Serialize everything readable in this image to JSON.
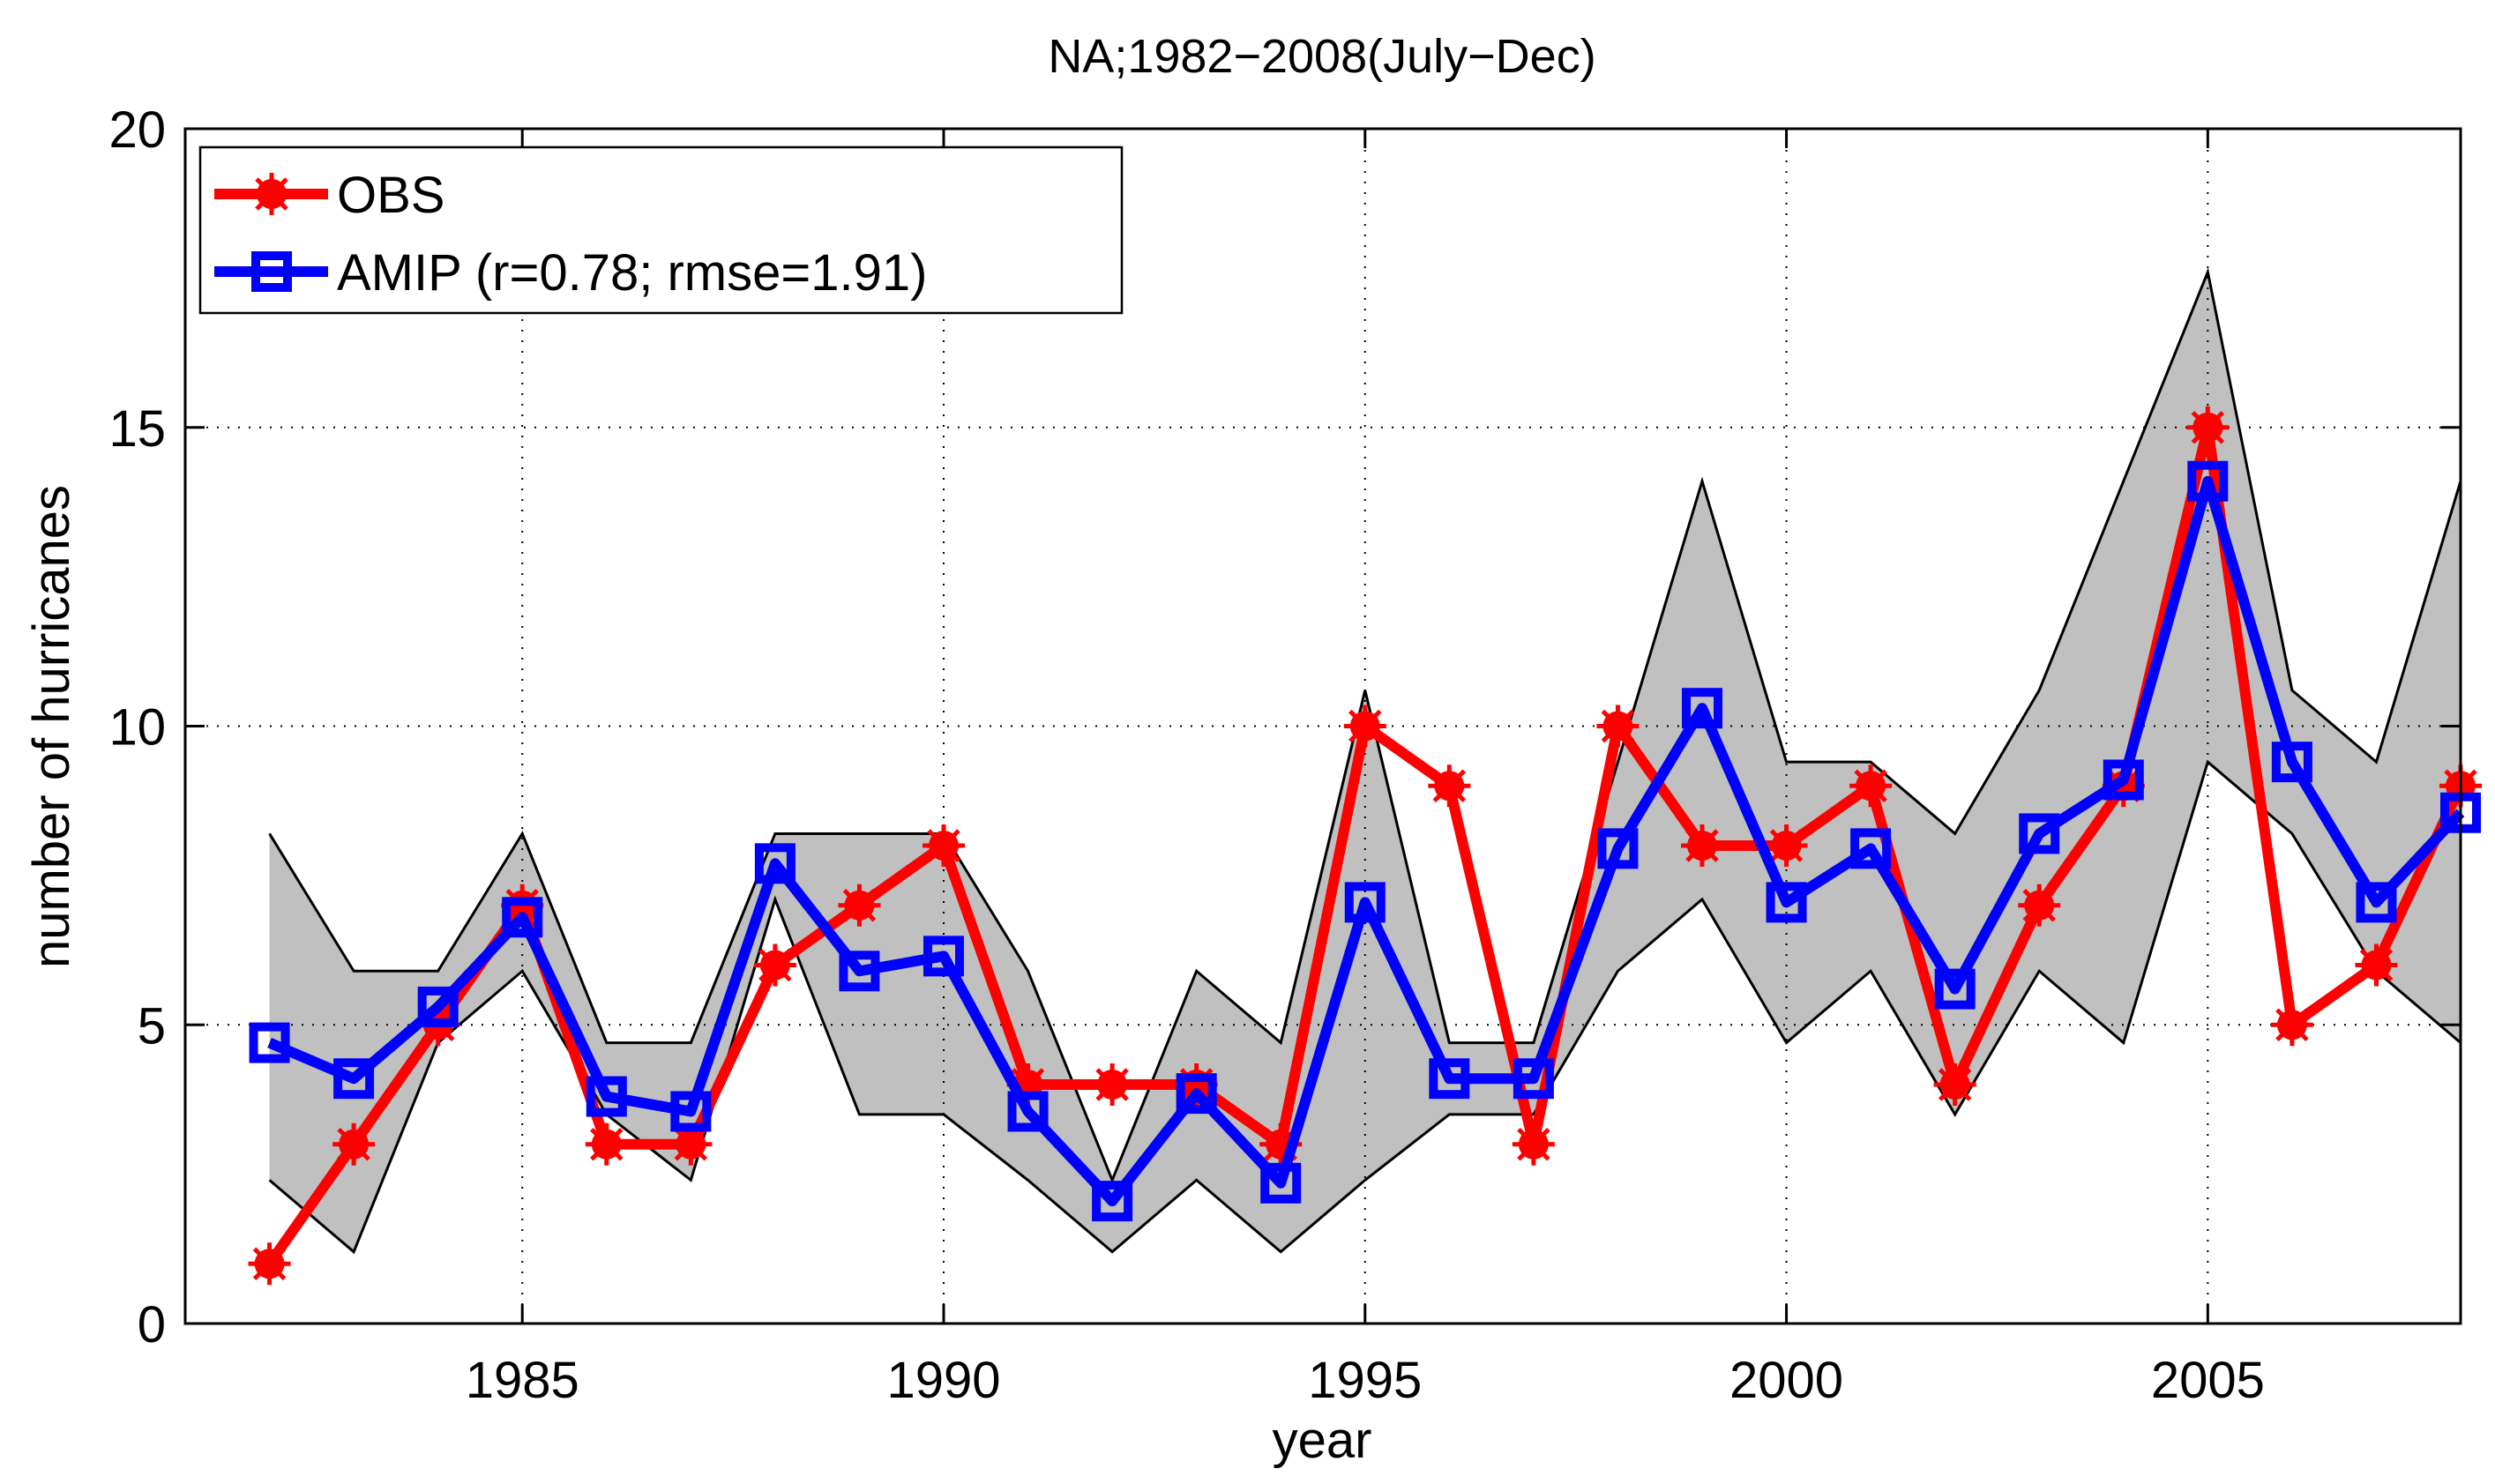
{
  "chart_data": {
    "type": "line",
    "title": "NA;1982−2008(July−Dec)",
    "xlabel": "year",
    "ylabel": "number of hurricanes",
    "xlim": [
      1981,
      2008
    ],
    "ylim": [
      0,
      20
    ],
    "xticks": [
      1985,
      1990,
      1995,
      2000,
      2005
    ],
    "yticks": [
      0,
      5,
      10,
      15,
      20
    ],
    "grid": true,
    "legend_position": "top-left",
    "x": [
      1982,
      1983,
      1984,
      1985,
      1986,
      1987,
      1988,
      1989,
      1990,
      1991,
      1992,
      1993,
      1994,
      1995,
      1996,
      1997,
      1998,
      1999,
      2000,
      2001,
      2002,
      2003,
      2004,
      2005,
      2006,
      2007,
      2008
    ],
    "series": [
      {
        "name": "OBS",
        "color": "#ff0000",
        "marker": "asterisk-dot",
        "values": [
          1,
          3,
          5,
          7,
          3,
          3,
          6,
          7,
          8,
          4,
          4,
          4,
          3,
          10,
          9,
          3,
          10,
          8,
          8,
          9,
          4,
          7,
          9,
          15,
          5,
          6,
          9
        ]
      },
      {
        "name": "AMIP (r=0.78; rmse=1.91)",
        "color": "#0000ff",
        "marker": "square",
        "values": [
          4.7,
          4.1,
          5.3,
          6.8,
          3.8,
          3.55,
          7.7,
          5.9,
          6.15,
          3.55,
          2.05,
          3.85,
          2.35,
          7.05,
          4.1,
          4.1,
          7.95,
          10.3,
          7.05,
          7.95,
          5.6,
          8.2,
          9.1,
          14.1,
          9.4,
          7.05,
          8.55
        ]
      }
    ],
    "band": {
      "name": "spread",
      "color": "#c0c0c0",
      "upper": [
        8.2,
        5.9,
        5.9,
        8.2,
        4.7,
        4.7,
        8.2,
        8.2,
        8.2,
        5.9,
        2.4,
        5.9,
        4.7,
        10.6,
        4.7,
        4.7,
        9.4,
        14.1,
        9.4,
        9.4,
        8.2,
        10.6,
        14.1,
        17.6,
        10.6,
        9.4,
        14.1
      ],
      "lower": [
        2.4,
        1.2,
        4.7,
        5.9,
        3.5,
        2.4,
        7.1,
        3.5,
        3.5,
        2.4,
        1.2,
        2.4,
        1.2,
        2.4,
        3.5,
        3.5,
        5.9,
        7.1,
        4.7,
        5.9,
        3.5,
        5.9,
        4.7,
        9.4,
        8.2,
        5.9,
        4.7
      ]
    }
  }
}
